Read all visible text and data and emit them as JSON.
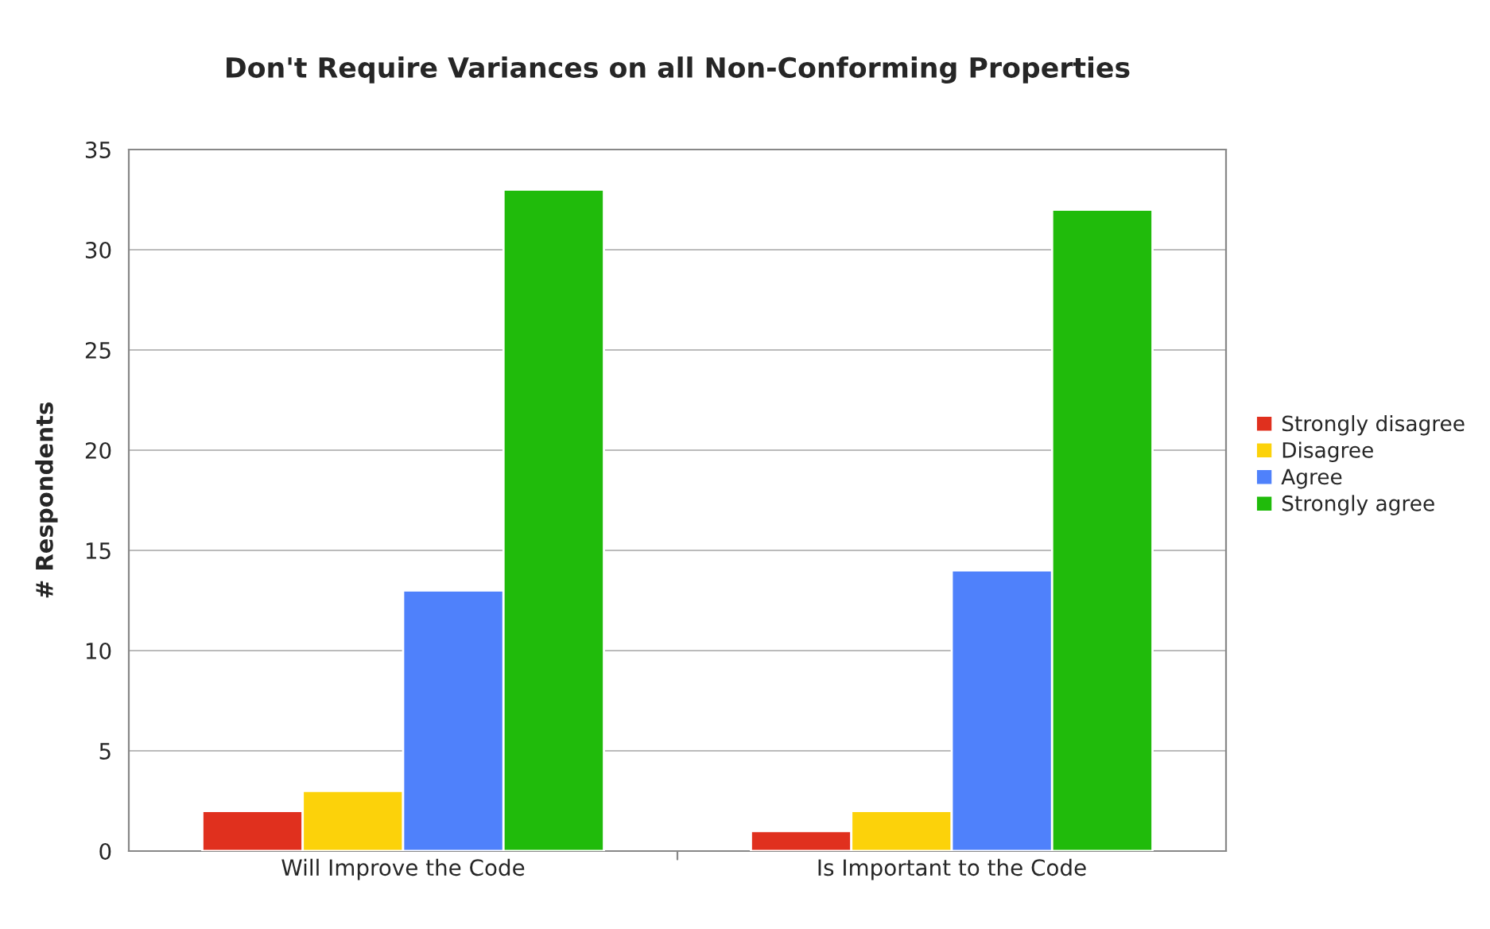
{
  "chart_data": {
    "type": "bar",
    "title": "Don't Require Variances on all Non-Conforming Properties",
    "ylabel": "# Respondents",
    "categories": [
      "Will Improve the Code",
      "Is Important to the Code"
    ],
    "series": [
      {
        "name": "Strongly disagree",
        "color": "#e0301e",
        "values": [
          2,
          1
        ]
      },
      {
        "name": "Disagree",
        "color": "#fcd20a",
        "values": [
          3,
          2
        ]
      },
      {
        "name": "Agree",
        "color": "#4f81fb",
        "values": [
          13,
          14
        ]
      },
      {
        "name": "Strongly agree",
        "color": "#20bb0b",
        "values": [
          33,
          32
        ]
      }
    ],
    "ylim": [
      0,
      35
    ],
    "yticks": [
      0,
      5,
      10,
      15,
      20,
      25,
      30,
      35
    ],
    "grid": "y",
    "legend": "right"
  }
}
